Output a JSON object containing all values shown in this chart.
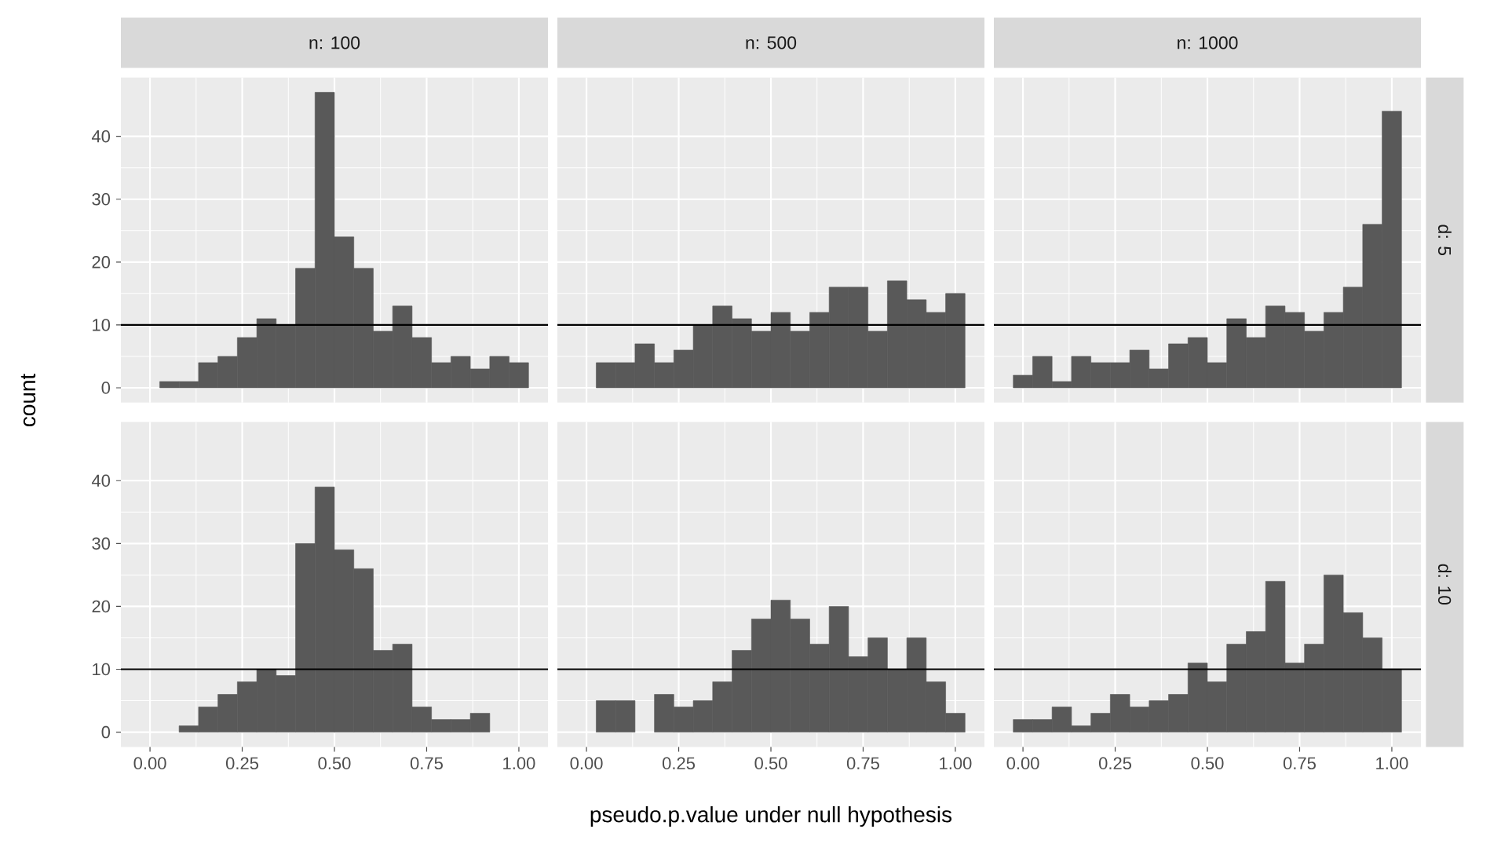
{
  "chart_data": [
    {
      "type": "histogram",
      "title": "n: 100",
      "ylabel": "count",
      "bins": [
        -0.0263,
        0.0263,
        0.0789,
        0.1316,
        0.1842,
        0.2368,
        0.2895,
        0.3421,
        0.3947,
        0.4474,
        0.5,
        0.5526,
        0.6053,
        0.6579,
        0.7105,
        0.7632,
        0.8158,
        0.8684,
        0.9211,
        0.9737,
        1.0263
      ],
      "values": [
        0,
        1,
        1,
        4,
        5,
        8,
        11,
        10,
        19,
        47,
        24,
        19,
        9,
        13,
        8,
        4,
        5,
        3,
        5,
        4
      ],
      "color": "#595959",
      "xlim": [
        -0.0789,
        1.0789
      ],
      "ylim": [
        -2.35,
        49.35
      ],
      "xticks": [
        {
          "value": 0,
          "label": null
        },
        {
          "value": 0.25,
          "label": null
        },
        {
          "value": 0.5,
          "label": null
        },
        {
          "value": 0.75,
          "label": null
        },
        {
          "value": 1,
          "label": null
        }
      ],
      "yticks": [
        0,
        10,
        20,
        30,
        40
      ],
      "grid": true,
      "tick_labels": "y",
      "ref_lines": [
        {
          "axis": "y",
          "value": 10,
          "color": "#000000"
        }
      ]
    },
    {
      "type": "histogram",
      "title": "n: 500",
      "bins": [
        -0.0263,
        0.0263,
        0.0789,
        0.1316,
        0.1842,
        0.2368,
        0.2895,
        0.3421,
        0.3947,
        0.4474,
        0.5,
        0.5526,
        0.6053,
        0.6579,
        0.7105,
        0.7632,
        0.8158,
        0.8684,
        0.9211,
        0.9737,
        1.0263
      ],
      "values": [
        0,
        4,
        4,
        7,
        4,
        6,
        10,
        13,
        11,
        9,
        12,
        9,
        12,
        16,
        16,
        9,
        17,
        14,
        12,
        15
      ],
      "color": "#595959",
      "xlim": [
        -0.0789,
        1.0789
      ],
      "ylim": [
        -2.35,
        49.35
      ],
      "xticks": [
        {
          "value": 0,
          "label": null
        },
        {
          "value": 0.25,
          "label": null
        },
        {
          "value": 0.5,
          "label": null
        },
        {
          "value": 0.75,
          "label": null
        },
        {
          "value": 1,
          "label": null
        }
      ],
      "yticks": [
        {
          "value": 0,
          "label": null
        },
        {
          "value": 10,
          "label": null
        },
        {
          "value": 20,
          "label": null
        },
        {
          "value": 30,
          "label": null
        },
        {
          "value": 40,
          "label": null
        }
      ],
      "grid": true,
      "tick_labels": false,
      "ref_lines": [
        {
          "axis": "y",
          "value": 10,
          "color": "#000000"
        }
      ]
    },
    {
      "type": "histogram",
      "title": "n: 1000",
      "y2label": "d: 5",
      "bins": [
        -0.0263,
        0.0263,
        0.0789,
        0.1316,
        0.1842,
        0.2368,
        0.2895,
        0.3421,
        0.3947,
        0.4474,
        0.5,
        0.5526,
        0.6053,
        0.6579,
        0.7105,
        0.7632,
        0.8158,
        0.8684,
        0.9211,
        0.9737,
        1.0263
      ],
      "values": [
        2,
        5,
        1,
        5,
        4,
        4,
        6,
        3,
        7,
        8,
        4,
        11,
        8,
        13,
        12,
        9,
        12,
        16,
        26,
        44
      ],
      "color": "#595959",
      "xlim": [
        -0.0789,
        1.0789
      ],
      "ylim": [
        -2.35,
        49.35
      ],
      "xticks": [
        {
          "value": 0,
          "label": null
        },
        {
          "value": 0.25,
          "label": null
        },
        {
          "value": 0.5,
          "label": null
        },
        {
          "value": 0.75,
          "label": null
        },
        {
          "value": 1,
          "label": null
        }
      ],
      "yticks": [
        {
          "value": 0,
          "label": null
        },
        {
          "value": 10,
          "label": null
        },
        {
          "value": 20,
          "label": null
        },
        {
          "value": 30,
          "label": null
        },
        {
          "value": 40,
          "label": null
        }
      ],
      "grid": true,
      "tick_labels": false,
      "ref_lines": [
        {
          "axis": "y",
          "value": 10,
          "color": "#000000"
        }
      ]
    },
    {
      "type": "histogram",
      "bins": [
        -0.0263,
        0.0263,
        0.0789,
        0.1316,
        0.1842,
        0.2368,
        0.2895,
        0.3421,
        0.3947,
        0.4474,
        0.5,
        0.5526,
        0.6053,
        0.6579,
        0.7105,
        0.7632,
        0.8158,
        0.8684,
        0.9211,
        0.9737,
        1.0263
      ],
      "values": [
        0,
        0,
        1,
        4,
        6,
        8,
        10,
        9,
        30,
        39,
        29,
        26,
        13,
        14,
        4,
        2,
        2,
        3,
        0,
        0
      ],
      "color": "#595959",
      "xlim": [
        -0.0789,
        1.0789
      ],
      "ylim": [
        -2.35,
        49.35
      ],
      "xticks": [
        {
          "value": 0,
          "label": "0.00"
        },
        {
          "value": 0.25,
          "label": "0.25"
        },
        {
          "value": 0.5,
          "label": "0.50"
        },
        {
          "value": 0.75,
          "label": "0.75"
        },
        {
          "value": 1,
          "label": "1.00"
        }
      ],
      "yticks": [
        0,
        10,
        20,
        30,
        40
      ],
      "grid": true,
      "ref_lines": [
        {
          "axis": "y",
          "value": 10,
          "color": "#000000"
        }
      ]
    },
    {
      "type": "histogram",
      "xlabel": "pseudo.p.value under null hypothesis",
      "bins": [
        -0.0263,
        0.0263,
        0.0789,
        0.1316,
        0.1842,
        0.2368,
        0.2895,
        0.3421,
        0.3947,
        0.4474,
        0.5,
        0.5526,
        0.6053,
        0.6579,
        0.7105,
        0.7632,
        0.8158,
        0.8684,
        0.9211,
        0.9737,
        1.0263
      ],
      "values": [
        0,
        5,
        5,
        0,
        6,
        4,
        5,
        8,
        13,
        18,
        21,
        18,
        14,
        20,
        12,
        15,
        10,
        15,
        8,
        3
      ],
      "color": "#595959",
      "xlim": [
        -0.0789,
        1.0789
      ],
      "ylim": [
        -2.35,
        49.35
      ],
      "xticks": [
        {
          "value": 0,
          "label": "0.00"
        },
        {
          "value": 0.25,
          "label": "0.25"
        },
        {
          "value": 0.5,
          "label": "0.50"
        },
        {
          "value": 0.75,
          "label": "0.75"
        },
        {
          "value": 1,
          "label": "1.00"
        }
      ],
      "yticks": [
        {
          "value": 0,
          "label": null
        },
        {
          "value": 10,
          "label": null
        },
        {
          "value": 20,
          "label": null
        },
        {
          "value": 30,
          "label": null
        },
        {
          "value": 40,
          "label": null
        }
      ],
      "grid": true,
      "tick_labels": "x",
      "ref_lines": [
        {
          "axis": "y",
          "value": 10,
          "color": "#000000"
        }
      ]
    },
    {
      "type": "histogram",
      "y2label": "d: 10",
      "bins": [
        -0.0263,
        0.0263,
        0.0789,
        0.1316,
        0.1842,
        0.2368,
        0.2895,
        0.3421,
        0.3947,
        0.4474,
        0.5,
        0.5526,
        0.6053,
        0.6579,
        0.7105,
        0.7632,
        0.8158,
        0.8684,
        0.9211,
        0.9737,
        1.0263
      ],
      "values": [
        2,
        2,
        4,
        1,
        3,
        6,
        4,
        5,
        6,
        11,
        8,
        14,
        16,
        24,
        11,
        14,
        25,
        19,
        15,
        10
      ],
      "color": "#595959",
      "xlim": [
        -0.0789,
        1.0789
      ],
      "ylim": [
        -2.35,
        49.35
      ],
      "xticks": [
        {
          "value": 0,
          "label": "0.00"
        },
        {
          "value": 0.25,
          "label": "0.25"
        },
        {
          "value": 0.5,
          "label": "0.50"
        },
        {
          "value": 0.75,
          "label": "0.75"
        },
        {
          "value": 1,
          "label": "1.00"
        }
      ],
      "yticks": [
        {
          "value": 0,
          "label": null
        },
        {
          "value": 10,
          "label": null
        },
        {
          "value": 20,
          "label": null
        },
        {
          "value": 30,
          "label": null
        },
        {
          "value": 40,
          "label": null
        }
      ],
      "grid": true,
      "tick_labels": "x",
      "ref_lines": [
        {
          "axis": "y",
          "value": 10,
          "color": "#000000"
        }
      ]
    }
  ]
}
